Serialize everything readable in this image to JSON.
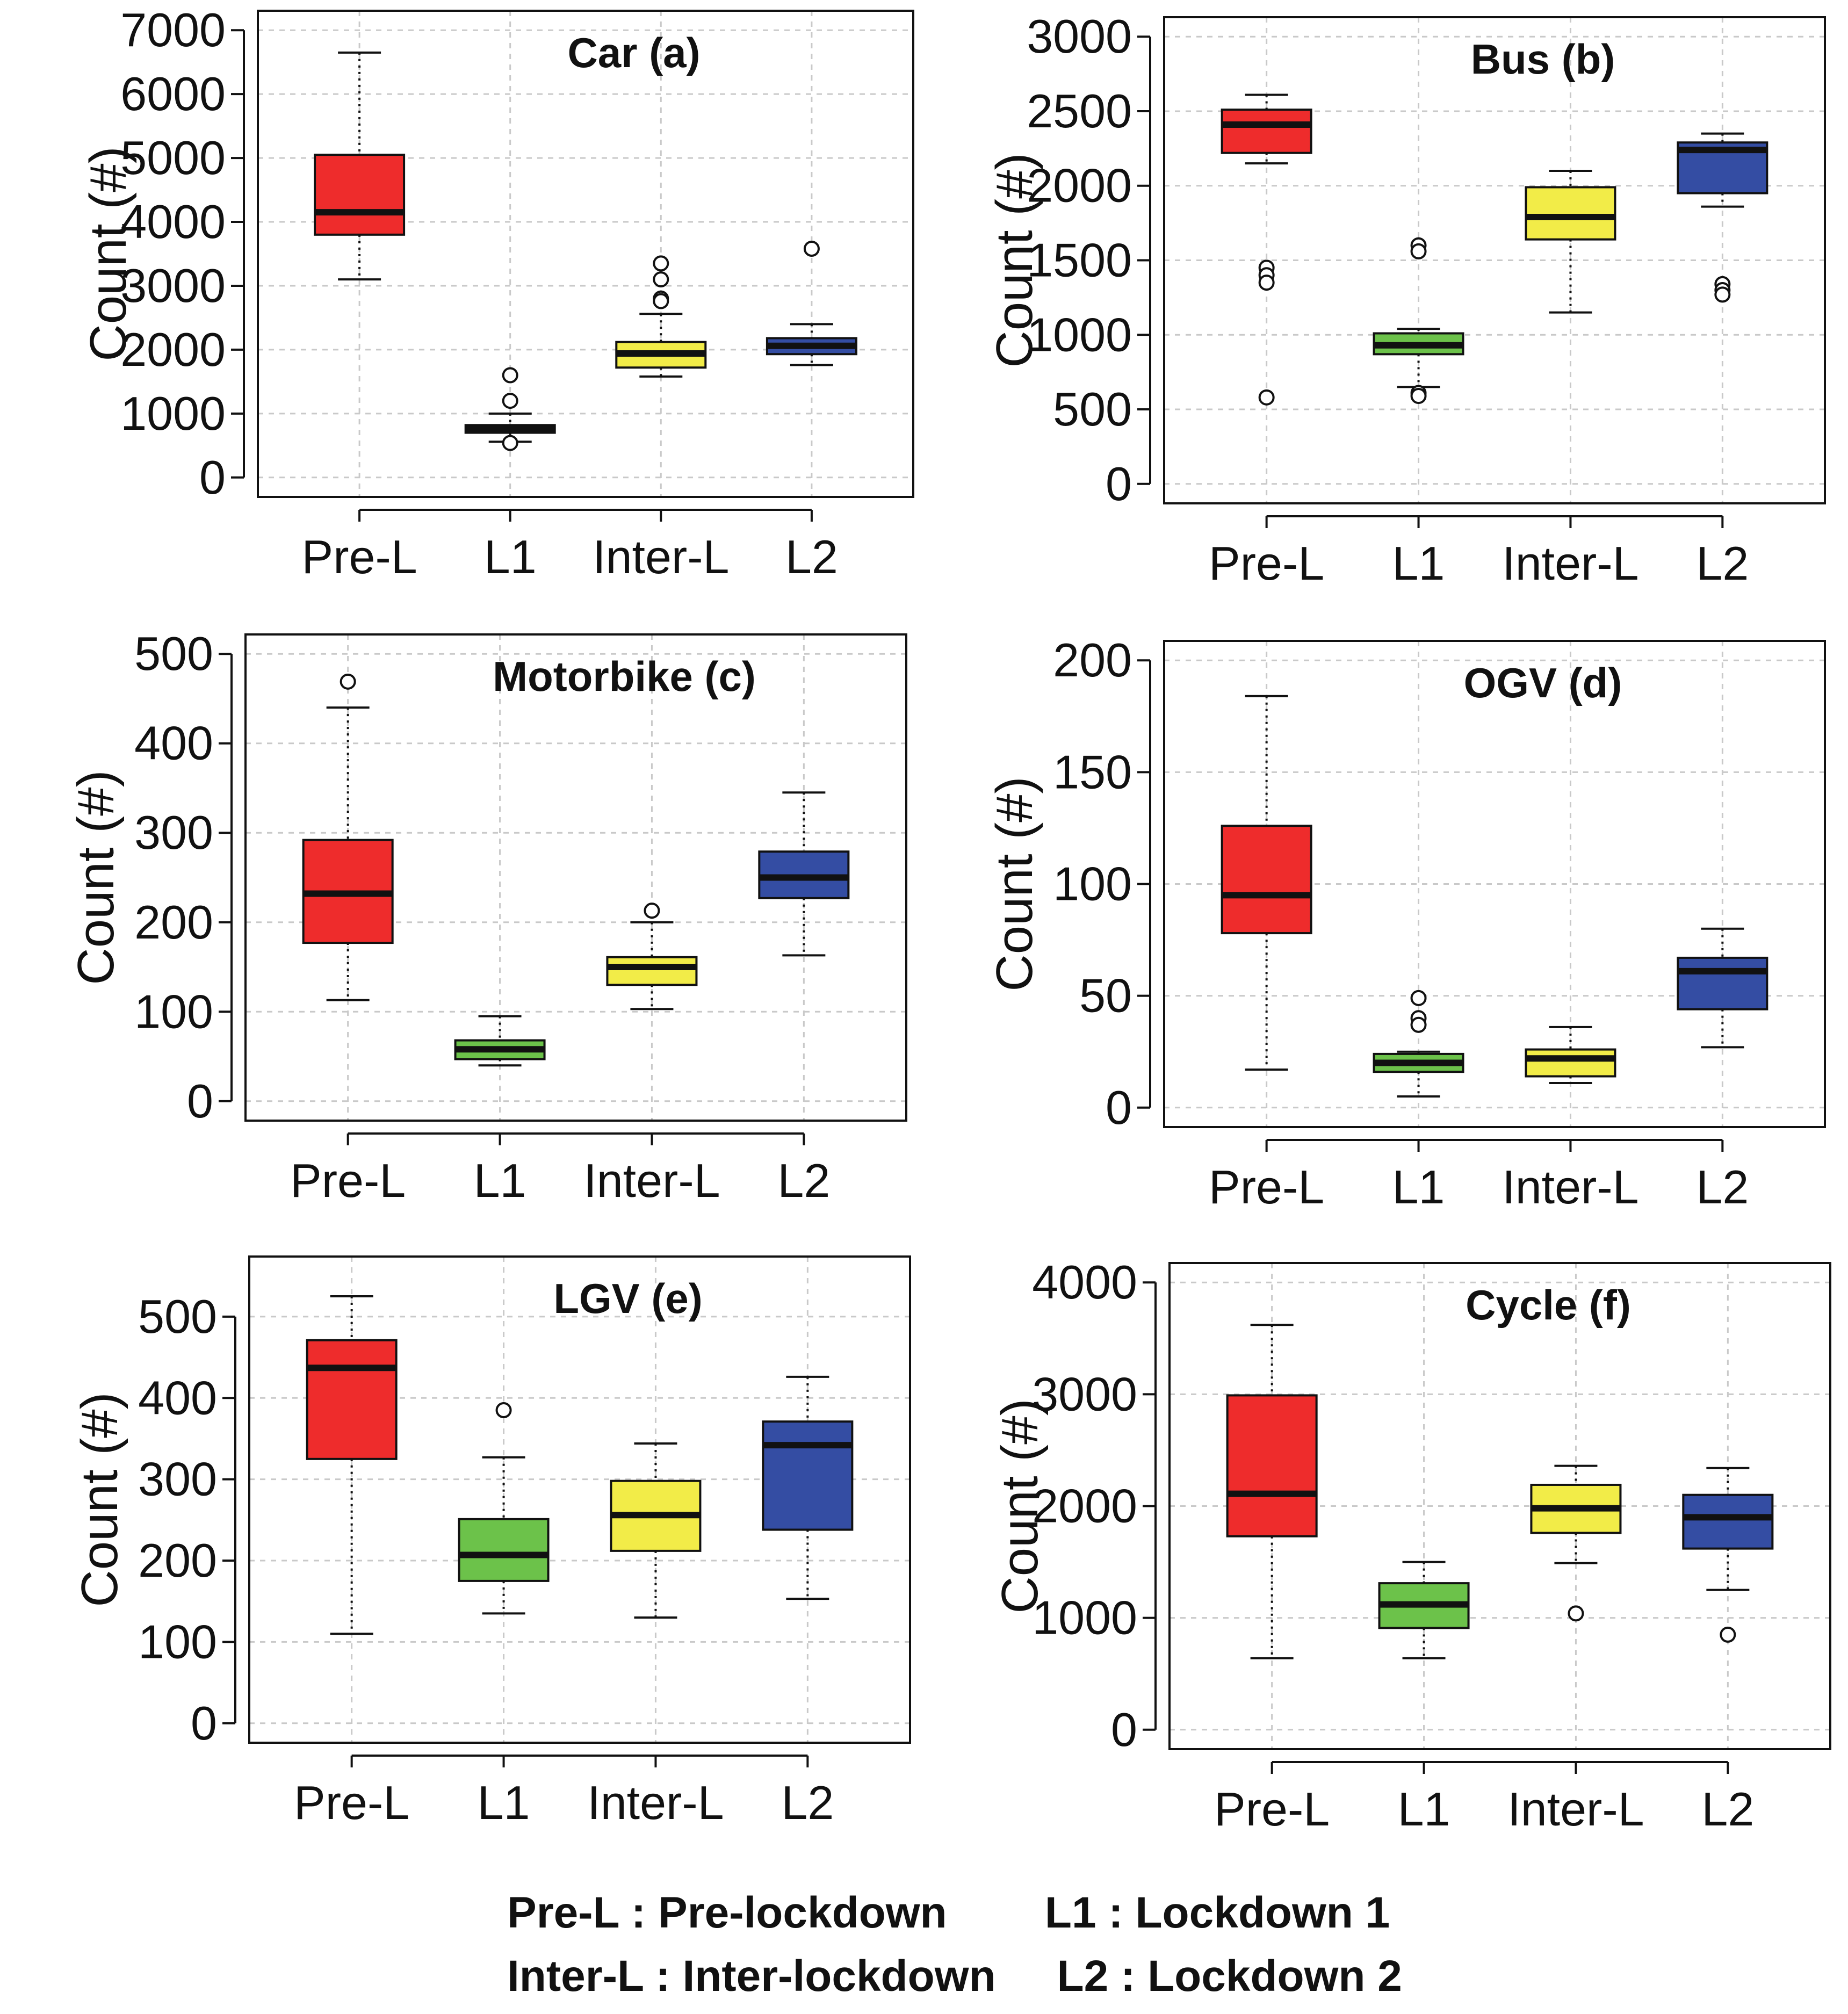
{
  "chart_data": [
    {
      "type": "box",
      "title": "Car (a)",
      "ylabel": "Count (#)",
      "ylim": [
        0,
        7000
      ],
      "yticks": [
        0,
        1000,
        2000,
        3000,
        4000,
        5000,
        6000,
        7000
      ],
      "grid": true,
      "categories": [
        "Pre-L",
        "L1",
        "Inter-L",
        "L2"
      ],
      "boxes": [
        {
          "category": "Pre-L",
          "whisker_low": 3100,
          "q1": 3800,
          "median": 4150,
          "q3": 5050,
          "whisker_high": 6650,
          "outliers": []
        },
        {
          "category": "L1",
          "whisker_low": 560,
          "q1": 700,
          "median": 760,
          "q3": 820,
          "whisker_high": 1000,
          "outliers": [
            1600,
            1200,
            540
          ]
        },
        {
          "category": "Inter-L",
          "whisker_low": 1580,
          "q1": 1720,
          "median": 1940,
          "q3": 2120,
          "whisker_high": 2560,
          "outliers": [
            3350,
            3100,
            2800,
            2760
          ]
        },
        {
          "category": "L2",
          "whisker_low": 1760,
          "q1": 1930,
          "median": 2060,
          "q3": 2180,
          "whisker_high": 2400,
          "outliers": [
            3580
          ]
        }
      ]
    },
    {
      "type": "box",
      "title": "Bus (b)",
      "ylabel": "Count (#)",
      "ylim": [
        0,
        3000
      ],
      "yticks": [
        0,
        500,
        1000,
        1500,
        2000,
        2500,
        3000
      ],
      "grid": true,
      "categories": [
        "Pre-L",
        "L1",
        "Inter-L",
        "L2"
      ],
      "boxes": [
        {
          "category": "Pre-L",
          "whisker_low": 2150,
          "q1": 2220,
          "median": 2410,
          "q3": 2510,
          "whisker_high": 2610,
          "outliers": [
            1450,
            1400,
            1350,
            580
          ]
        },
        {
          "category": "L1",
          "whisker_low": 650,
          "q1": 870,
          "median": 930,
          "q3": 1010,
          "whisker_high": 1040,
          "outliers": [
            1600,
            1560,
            610,
            590
          ]
        },
        {
          "category": "Inter-L",
          "whisker_low": 1150,
          "q1": 1640,
          "median": 1790,
          "q3": 1990,
          "whisker_high": 2100,
          "outliers": []
        },
        {
          "category": "L2",
          "whisker_low": 1860,
          "q1": 1950,
          "median": 2240,
          "q3": 2290,
          "whisker_high": 2350,
          "outliers": [
            1340,
            1300,
            1270
          ]
        }
      ]
    },
    {
      "type": "box",
      "title": "Motorbike (c)",
      "ylabel": "Count (#)",
      "ylim": [
        0,
        500
      ],
      "yticks": [
        0,
        100,
        200,
        300,
        400,
        500
      ],
      "grid": true,
      "categories": [
        "Pre-L",
        "L1",
        "Inter-L",
        "L2"
      ],
      "boxes": [
        {
          "category": "Pre-L",
          "whisker_low": 113,
          "q1": 177,
          "median": 232,
          "q3": 292,
          "whisker_high": 440,
          "outliers": [
            469
          ]
        },
        {
          "category": "L1",
          "whisker_low": 40,
          "q1": 47,
          "median": 58,
          "q3": 68,
          "whisker_high": 95,
          "outliers": []
        },
        {
          "category": "Inter-L",
          "whisker_low": 103,
          "q1": 130,
          "median": 150,
          "q3": 161,
          "whisker_high": 200,
          "outliers": [
            213
          ]
        },
        {
          "category": "L2",
          "whisker_low": 163,
          "q1": 227,
          "median": 250,
          "q3": 279,
          "whisker_high": 345,
          "outliers": []
        }
      ]
    },
    {
      "type": "box",
      "title": "OGV (d)",
      "ylabel": "Count (#)",
      "ylim": [
        0,
        200
      ],
      "yticks": [
        0,
        50,
        100,
        150,
        200
      ],
      "grid": true,
      "categories": [
        "Pre-L",
        "L1",
        "Inter-L",
        "L2"
      ],
      "boxes": [
        {
          "category": "Pre-L",
          "whisker_low": 17,
          "q1": 78,
          "median": 95,
          "q3": 126,
          "whisker_high": 184,
          "outliers": []
        },
        {
          "category": "L1",
          "whisker_low": 5,
          "q1": 16,
          "median": 20,
          "q3": 24,
          "whisker_high": 25,
          "outliers": [
            49,
            40,
            37
          ]
        },
        {
          "category": "Inter-L",
          "whisker_low": 11,
          "q1": 14,
          "median": 22,
          "q3": 26,
          "whisker_high": 36,
          "outliers": []
        },
        {
          "category": "L2",
          "whisker_low": 27,
          "q1": 44,
          "median": 61,
          "q3": 67,
          "whisker_high": 80,
          "outliers": []
        }
      ]
    },
    {
      "type": "box",
      "title": "LGV (e)",
      "ylabel": "Count (#)",
      "ylim": [
        0,
        550
      ],
      "yticks": [
        0,
        100,
        200,
        300,
        400,
        500
      ],
      "grid": true,
      "categories": [
        "Pre-L",
        "L1",
        "Inter-L",
        "L2"
      ],
      "boxes": [
        {
          "category": "Pre-L",
          "whisker_low": 110,
          "q1": 325,
          "median": 437,
          "q3": 471,
          "whisker_high": 525,
          "outliers": []
        },
        {
          "category": "L1",
          "whisker_low": 135,
          "q1": 175,
          "median": 207,
          "q3": 251,
          "whisker_high": 327,
          "outliers": [
            385
          ]
        },
        {
          "category": "Inter-L",
          "whisker_low": 130,
          "q1": 212,
          "median": 256,
          "q3": 298,
          "whisker_high": 344,
          "outliers": []
        },
        {
          "category": "L2",
          "whisker_low": 153,
          "q1": 238,
          "median": 342,
          "q3": 371,
          "whisker_high": 426,
          "outliers": []
        }
      ]
    },
    {
      "type": "box",
      "title": "Cycle (f)",
      "ylabel": "Count (#)",
      "ylim": [
        0,
        4000
      ],
      "yticks": [
        0,
        1000,
        2000,
        3000,
        4000
      ],
      "grid": true,
      "categories": [
        "Pre-L",
        "L1",
        "Inter-L",
        "L2"
      ],
      "boxes": [
        {
          "category": "Pre-L",
          "whisker_low": 640,
          "q1": 1730,
          "median": 2110,
          "q3": 2990,
          "whisker_high": 3620,
          "outliers": []
        },
        {
          "category": "L1",
          "whisker_low": 640,
          "q1": 910,
          "median": 1120,
          "q3": 1310,
          "whisker_high": 1500,
          "outliers": []
        },
        {
          "category": "Inter-L",
          "whisker_low": 1490,
          "q1": 1760,
          "median": 1980,
          "q3": 2190,
          "whisker_high": 2360,
          "outliers": [
            1040
          ]
        },
        {
          "category": "L2",
          "whisker_low": 1250,
          "q1": 1620,
          "median": 1900,
          "q3": 2100,
          "whisker_high": 2340,
          "outliers": [
            850
          ]
        }
      ]
    }
  ],
  "style": {
    "box_colors": [
      "#ee2c2c",
      "#6cc24a",
      "#f2ec48",
      "#344da3"
    ],
    "grid_color": "#c9c9c9",
    "line_color": "#111111"
  },
  "legend": {
    "lines": [
      "Pre-L : Pre-lockdown        L1 : Lockdown 1",
      "Inter-L : Inter-lockdown     L2 : Lockdown 2"
    ]
  }
}
